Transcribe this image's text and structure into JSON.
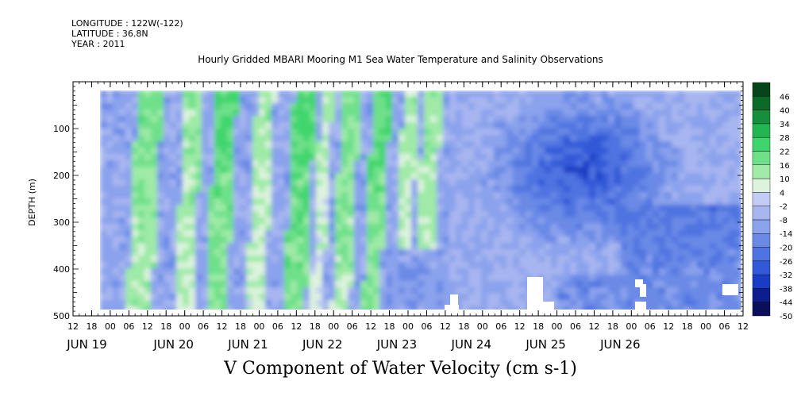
{
  "header": {
    "longitude": "LONGITUDE : 122W(-122)",
    "latitude": "LATITUDE : 36.8N",
    "year": "YEAR : 2011"
  },
  "chart_data": {
    "type": "heatmap",
    "title": "Hourly Gridded MBARI Mooring M1 Sea Water Temperature and Salinity Observations",
    "xlabel": "V Component of Water Velocity (cm s-1)",
    "ylabel": "DEPTH (m)",
    "ylim": [
      500,
      0
    ],
    "y_ticks": [
      100,
      200,
      300,
      400,
      500
    ],
    "hour_ticks": [
      "12",
      "18",
      "00",
      "06",
      "12",
      "18",
      "00",
      "06",
      "12",
      "18",
      "00",
      "06",
      "12",
      "18",
      "00",
      "06",
      "12",
      "18",
      "00",
      "06",
      "12",
      "18",
      "00",
      "06",
      "12",
      "18",
      "00",
      "06",
      "12",
      "18",
      "00",
      "06",
      "12",
      "18",
      "00",
      "06",
      "12"
    ],
    "day_labels": [
      "JUN 19",
      "JUN 20",
      "JUN 21",
      "JUN 22",
      "JUN 23",
      "JUN 24",
      "JUN 25",
      "JUN 26"
    ],
    "colorbar": {
      "levels": [
        -50,
        -44,
        -38,
        -32,
        -26,
        -20,
        -14,
        -8,
        -2,
        4,
        10,
        16,
        22,
        28,
        34,
        40,
        46
      ],
      "colors": [
        "#0a0f5a",
        "#0d1d8c",
        "#1a3cc4",
        "#3259d8",
        "#4f73e0",
        "#6b8ae6",
        "#8ba2ec",
        "#a7b6f0",
        "#c3ccf4",
        "#ddf3dd",
        "#9eeaa6",
        "#6ee08a",
        "#3fd56d",
        "#22b552",
        "#158f3c",
        "#0b6a2a",
        "#06441a"
      ]
    },
    "data_x_hours": [
      0,
      174
    ],
    "data_y_depth": [
      20,
      485
    ],
    "bands": [
      {
        "x0": 10,
        "x1": 16,
        "v": 18
      },
      {
        "x0": 24,
        "x1": 28,
        "v": 14
      },
      {
        "x0": 33,
        "x1": 38,
        "v": 22
      },
      {
        "x0": 45,
        "x1": 49,
        "v": 12
      },
      {
        "x0": 56,
        "x1": 61,
        "v": 24
      },
      {
        "x0": 64,
        "x1": 66,
        "v": 10
      },
      {
        "x0": 70,
        "x1": 74,
        "v": 18
      },
      {
        "x0": 79,
        "x1": 83,
        "v": 22
      },
      {
        "x0": 88,
        "x1": 91,
        "v": 12
      },
      {
        "x0": 94,
        "x1": 98,
        "v": 14
      }
    ]
  }
}
